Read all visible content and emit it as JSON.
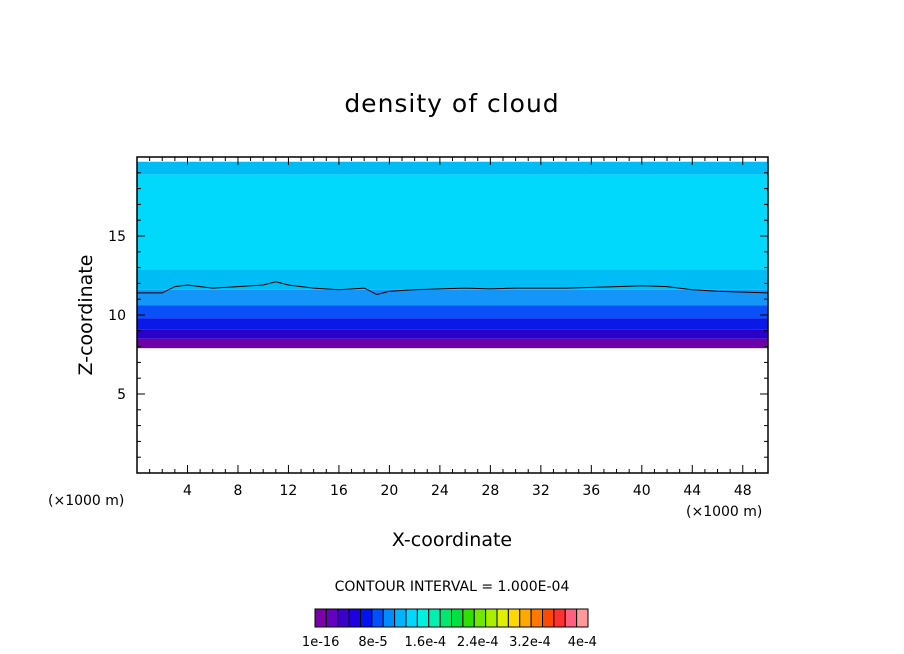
{
  "chart_data": {
    "type": "heatmap",
    "title": "density of cloud",
    "xlabel": "X-coordinate",
    "ylabel": "Z-coordinate",
    "x_unit": "(×1000 m)",
    "xlim": [
      0,
      50
    ],
    "ylim": [
      0,
      20
    ],
    "x_ticks": [
      4,
      8,
      12,
      16,
      20,
      24,
      28,
      32,
      36,
      40,
      44,
      48
    ],
    "y_ticks": [
      5,
      10,
      15
    ],
    "contour_interval_label": "CONTOUR INTERVAL = 1.000E-04",
    "colorbar_labels": [
      "1e-16",
      "8e-5",
      "1.6e-4",
      "2.4e-4",
      "3.2e-4",
      "4e-4"
    ],
    "colorbar_colors": [
      "#7a00a8",
      "#6600c0",
      "#3c00cc",
      "#1e00e0",
      "#0014f0",
      "#0050ff",
      "#008cff",
      "#00b4ff",
      "#00d8ff",
      "#00f0e0",
      "#00f0b0",
      "#00e870",
      "#00e040",
      "#30e000",
      "#70e800",
      "#a8f000",
      "#e0f000",
      "#ffd800",
      "#ffa800",
      "#ff7800",
      "#ff4800",
      "#ff3030",
      "#ff6080",
      "#ff9898"
    ],
    "bands": [
      {
        "z_bottom": 7.9,
        "z_top": 8.5,
        "color": "#6e00aa"
      },
      {
        "z_bottom": 8.5,
        "z_top": 9.1,
        "color": "#2a00c8"
      },
      {
        "z_bottom": 9.1,
        "z_top": 9.8,
        "color": "#0a18e8"
      },
      {
        "z_bottom": 9.8,
        "z_top": 10.6,
        "color": "#0a50f8"
      },
      {
        "z_bottom": 10.6,
        "z_top": 11.6,
        "color": "#1496f8"
      },
      {
        "z_bottom": 11.6,
        "z_top": 12.9,
        "color": "#00bcf4"
      },
      {
        "z_bottom": 12.9,
        "z_top": 18.9,
        "color": "#00d8fc"
      },
      {
        "z_bottom": 18.9,
        "z_top": 19.7,
        "color": "#00bcf4"
      }
    ],
    "contour_line": {
      "x": [
        0,
        2,
        3,
        4,
        5,
        6,
        8,
        10,
        11,
        12,
        13,
        14,
        16,
        18,
        19,
        20,
        22,
        24,
        26,
        28,
        30,
        32,
        34,
        36,
        38,
        40,
        42,
        44,
        46,
        48,
        50
      ],
      "z": [
        11.4,
        11.4,
        11.8,
        11.9,
        11.8,
        11.7,
        11.8,
        11.9,
        12.1,
        11.9,
        11.8,
        11.7,
        11.6,
        11.7,
        11.3,
        11.5,
        11.6,
        11.65,
        11.7,
        11.65,
        11.7,
        11.7,
        11.7,
        11.75,
        11.8,
        11.85,
        11.8,
        11.6,
        11.5,
        11.45,
        11.4
      ]
    }
  }
}
